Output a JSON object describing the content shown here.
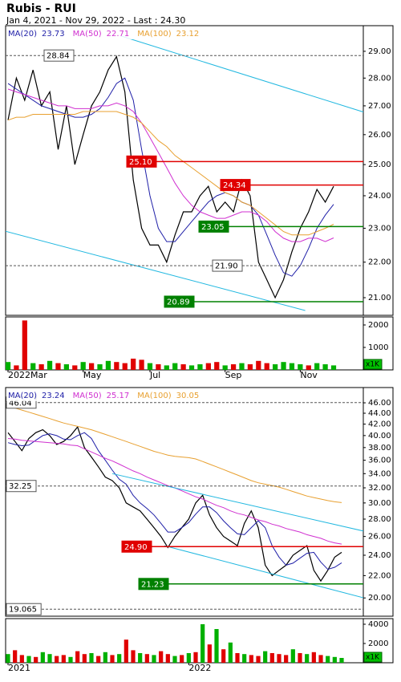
{
  "chart_data": [
    {
      "type": "line",
      "title": "Rubis - RUI",
      "subtitle": "Jan 4, 2021 - Nov 29, 2022 - Last : 24.30",
      "log": true,
      "ylim": [
        20.52,
        29.99
      ],
      "yticks": [
        {
          "value": 21,
          "label": "21.00"
        },
        {
          "value": 22,
          "label": "22.00"
        },
        {
          "value": 23,
          "label": "23.00"
        },
        {
          "value": 24,
          "label": "24.00"
        },
        {
          "value": 25,
          "label": "25.00"
        },
        {
          "value": 26,
          "label": "26.00"
        },
        {
          "value": 27,
          "label": "27.00"
        },
        {
          "value": 28,
          "label": "28.00"
        },
        {
          "value": 29,
          "label": "29.00"
        }
      ],
      "series": [
        {
          "color": "#000000",
          "values": [
            26.5,
            28.0,
            27.2,
            28.3,
            27.0,
            27.5,
            25.5,
            27.0,
            25.0,
            26.0,
            27.0,
            27.5,
            28.3,
            28.8,
            27.5,
            24.5,
            23.0,
            22.5,
            22.5,
            22.0,
            22.8,
            23.5,
            23.5,
            24.0,
            24.3,
            23.5,
            23.8,
            23.5,
            24.5,
            24.0,
            22.0,
            21.5,
            21.0,
            21.5,
            22.3,
            23.0,
            23.5,
            24.2,
            23.8,
            24.3
          ]
        },
        {
          "name": "MA(20)",
          "color": "#2020a8",
          "values": [
            27.8,
            27.6,
            27.4,
            27.2,
            27.0,
            26.9,
            26.8,
            26.7,
            26.6,
            26.6,
            26.7,
            26.9,
            27.3,
            27.8,
            28.0,
            27.2,
            25.5,
            24.0,
            23.0,
            22.6,
            22.6,
            22.9,
            23.2,
            23.5,
            23.8,
            24.0,
            24.1,
            24.0,
            23.8,
            23.7,
            23.4,
            22.8,
            22.2,
            21.7,
            21.6,
            21.9,
            22.4,
            23.0,
            23.4,
            23.73
          ]
        },
        {
          "name": "MA(50)",
          "color": "#d030d0",
          "values": [
            27.6,
            27.5,
            27.4,
            27.3,
            27.2,
            27.1,
            27.0,
            27.0,
            26.9,
            26.9,
            26.9,
            27.0,
            27.0,
            27.1,
            27.0,
            26.8,
            26.4,
            25.9,
            25.4,
            24.9,
            24.4,
            24.0,
            23.7,
            23.5,
            23.4,
            23.3,
            23.3,
            23.4,
            23.5,
            23.5,
            23.4,
            23.2,
            22.9,
            22.7,
            22.6,
            22.6,
            22.7,
            22.7,
            22.6,
            22.71
          ]
        },
        {
          "name": "MA(100)",
          "color": "#e8a030",
          "values": [
            26.5,
            26.6,
            26.6,
            26.7,
            26.7,
            26.7,
            26.7,
            26.7,
            26.7,
            26.8,
            26.8,
            26.8,
            26.8,
            26.8,
            26.7,
            26.6,
            26.4,
            26.1,
            25.8,
            25.6,
            25.3,
            25.1,
            24.9,
            24.7,
            24.5,
            24.3,
            24.1,
            24.0,
            23.8,
            23.7,
            23.5,
            23.3,
            23.1,
            22.9,
            22.8,
            22.8,
            22.8,
            22.9,
            23.0,
            23.12
          ]
        }
      ],
      "levels": [
        {
          "value": 28.84,
          "color": "#555555",
          "style": "dashed"
        },
        {
          "value": 25.1,
          "label": "25.10",
          "color": "#e00000",
          "style": "solid"
        },
        {
          "value": 24.34,
          "color": "#e00000",
          "style": "solid"
        },
        {
          "value": 23.05,
          "color": "#008000",
          "style": "solid"
        },
        {
          "value": 21.9,
          "label": "21.90",
          "color": "#555555",
          "style": "dashed"
        },
        {
          "value": 20.89,
          "color": "#008000",
          "style": "solid"
        }
      ],
      "trendlines": [
        {
          "color": "#22b8e0",
          "x": [
            13.5,
            42.6
          ],
          "values": [
            29.59,
            26.78
          ]
        },
        {
          "color": "#22b8e0",
          "x": [
            -0.3,
            35.6
          ],
          "values": [
            22.91,
            20.65
          ]
        }
      ]
    },
    {
      "type": "bar",
      "ylim": [
        0,
        2357
      ],
      "yticks": [
        1000,
        2000
      ],
      "unit_label": "x1K",
      "categories": [
        "2022Mar",
        null,
        null,
        null,
        null,
        null,
        null,
        null,
        null,
        "May",
        null,
        null,
        null,
        null,
        null,
        null,
        null,
        "Jul",
        null,
        null,
        null,
        null,
        null,
        null,
        null,
        null,
        "Sep",
        null,
        null,
        null,
        null,
        null,
        null,
        null,
        null,
        "Nov",
        null,
        null,
        null,
        null
      ],
      "values": [
        350,
        200,
        2200,
        300,
        250,
        400,
        300,
        250,
        200,
        350,
        300,
        250,
        400,
        350,
        300,
        500,
        450,
        300,
        250,
        200,
        300,
        250,
        200,
        250,
        300,
        350,
        200,
        250,
        300,
        250,
        400,
        300,
        250,
        350,
        300,
        250,
        200,
        300,
        250,
        200
      ],
      "colors": [
        "#00b000",
        "#e00000",
        "#e00000",
        "#00b000",
        "#e00000",
        "#00b000",
        "#e00000",
        "#00b000",
        "#e00000",
        "#00b000",
        "#e00000",
        "#00b000",
        "#00b000",
        "#e00000",
        "#e00000",
        "#e00000",
        "#e00000",
        "#00b000",
        "#e00000",
        "#00b000",
        "#00b000",
        "#e00000",
        "#00b000",
        "#00b000",
        "#e00000",
        "#e00000",
        "#00b000",
        "#e00000",
        "#00b000",
        "#e00000",
        "#e00000",
        "#e00000",
        "#00b000",
        "#00b000",
        "#00b000",
        "#00b000",
        "#e00000",
        "#00b000",
        "#00b000",
        "#00b000"
      ]
    },
    {
      "type": "line",
      "log": true,
      "ylim": [
        18.5,
        49.1
      ],
      "yticks": [
        {
          "value": 20,
          "label": "20.00"
        },
        {
          "value": 22,
          "label": "22.00"
        },
        {
          "value": 24,
          "label": "24.00"
        },
        {
          "value": 26,
          "label": "26.00"
        },
        {
          "value": 28,
          "label": "28.00"
        },
        {
          "value": 30,
          "label": "30.00"
        },
        {
          "value": 32,
          "label": "32.00"
        },
        {
          "value": 34,
          "label": "34.00"
        },
        {
          "value": 36,
          "label": "36.00"
        },
        {
          "value": 38,
          "label": "38.00"
        },
        {
          "value": 40,
          "label": "40.00"
        },
        {
          "value": 42,
          "label": "42.00"
        },
        {
          "value": 44,
          "label": "44.00"
        },
        {
          "value": 46,
          "label": "46.00"
        }
      ],
      "series": [
        {
          "color": "#000000",
          "values": [
            40.5,
            39,
            37.5,
            39.5,
            40.5,
            41,
            40,
            38.5,
            39,
            40,
            41.5,
            38,
            36.5,
            35,
            33.5,
            33,
            32,
            30,
            29.5,
            29,
            28,
            27,
            26,
            24.8,
            26,
            27,
            28,
            30,
            31,
            28.5,
            27,
            26,
            25.5,
            25,
            27.5,
            29,
            27,
            23,
            22,
            22.5,
            23,
            24,
            24.5,
            25,
            22.5,
            21.5,
            22.5,
            23.8,
            24.3
          ]
        },
        {
          "name": "MA(20)",
          "color": "#2020a8",
          "values": [
            38.8,
            38.5,
            38.3,
            38.4,
            39.2,
            40.0,
            40.3,
            40.0,
            39.4,
            39.3,
            40.0,
            40.5,
            39.5,
            37.5,
            36.0,
            34.5,
            33.2,
            32.5,
            31.0,
            30.0,
            29.3,
            28.5,
            27.5,
            26.5,
            26.5,
            27.0,
            27.6,
            28.6,
            29.5,
            29.5,
            28.8,
            27.8,
            27.0,
            26.3,
            26.2,
            27.0,
            27.8,
            27.0,
            25.0,
            23.8,
            23.0,
            23.2,
            23.7,
            24.2,
            24.3,
            23.3,
            22.6,
            22.8,
            23.24
          ]
        },
        {
          "name": "MA(50)",
          "color": "#d030d0",
          "values": [
            39.5,
            39.4,
            39.2,
            39.1,
            39.0,
            38.9,
            38.8,
            38.7,
            38.6,
            38.4,
            38.3,
            37.8,
            37.3,
            36.8,
            36.3,
            35.9,
            35.4,
            34.9,
            34.4,
            34.0,
            33.5,
            33.1,
            32.7,
            32.3,
            32.0,
            31.6,
            31.2,
            30.8,
            30.5,
            30.1,
            29.7,
            29.4,
            29.0,
            28.7,
            28.5,
            28.2,
            27.9,
            27.7,
            27.4,
            27.2,
            26.9,
            26.7,
            26.5,
            26.2,
            26.0,
            25.8,
            25.5,
            25.3,
            25.17
          ]
        },
        {
          "name": "MA(100)",
          "color": "#e8a030",
          "values": [
            45.5,
            45.0,
            44.6,
            44.2,
            43.8,
            43.4,
            43.0,
            42.6,
            42.2,
            41.9,
            41.6,
            41.3,
            41.0,
            40.6,
            40.2,
            39.8,
            39.4,
            39.0,
            38.6,
            38.2,
            37.8,
            37.4,
            37.1,
            36.8,
            36.6,
            36.5,
            36.4,
            36.2,
            35.8,
            35.4,
            35.0,
            34.6,
            34.2,
            33.8,
            33.4,
            33.0,
            32.7,
            32.5,
            32.3,
            32.1,
            31.8,
            31.5,
            31.2,
            30.9,
            30.7,
            30.5,
            30.3,
            30.15,
            30.05
          ]
        }
      ],
      "levels": [
        {
          "value": 46.04,
          "color": "#555555",
          "style": "dashed"
        },
        {
          "value": 32.25,
          "color": "#555555",
          "style": "dashed"
        },
        {
          "value": 24.9,
          "label": "24.90",
          "color": "#e00000",
          "style": "solid"
        },
        {
          "value": 21.23,
          "color": "#008000",
          "style": "solid"
        },
        {
          "value": 19.065,
          "color": "#555555",
          "style": "dashed"
        }
      ],
      "trendlines": [
        {
          "color": "#22b8e0",
          "x": [
            15.0,
            51.2
          ],
          "values": [
            34.0,
            26.6
          ]
        },
        {
          "color": "#22b8e0",
          "x": [
            22.5,
            51.2
          ],
          "values": [
            25.0,
            20.0
          ]
        }
      ]
    },
    {
      "type": "bar",
      "ylim": [
        0,
        4583
      ],
      "yticks": [
        2000,
        4000
      ],
      "unit_label": "x1K",
      "categories": [
        "2021",
        null,
        null,
        null,
        null,
        null,
        null,
        null,
        null,
        null,
        null,
        null,
        null,
        null,
        null,
        null,
        null,
        null,
        null,
        null,
        null,
        null,
        null,
        null,
        null,
        null,
        "2022",
        null,
        null,
        null,
        null,
        null,
        null,
        null,
        null,
        null,
        null,
        null,
        null,
        null,
        null,
        null,
        null,
        null,
        null,
        null,
        null,
        null,
        null
      ],
      "values": [
        900,
        1300,
        800,
        700,
        600,
        1100,
        900,
        700,
        800,
        600,
        1200,
        900,
        1000,
        700,
        1100,
        800,
        900,
        2400,
        1300,
        1000,
        900,
        800,
        1200,
        900,
        700,
        800,
        1000,
        1100,
        4000,
        1900,
        3500,
        1400,
        2100,
        1000,
        900,
        800,
        700,
        1200,
        1000,
        900,
        800,
        1400,
        1000,
        900,
        1100,
        800,
        700,
        600,
        500
      ],
      "colors": [
        "#00b000",
        "#e00000",
        "#e00000",
        "#00b000",
        "#e00000",
        "#00b000",
        "#00b000",
        "#e00000",
        "#e00000",
        "#00b000",
        "#e00000",
        "#e00000",
        "#00b000",
        "#e00000",
        "#00b000",
        "#e00000",
        "#00b000",
        "#e00000",
        "#e00000",
        "#00b000",
        "#e00000",
        "#00b000",
        "#e00000",
        "#e00000",
        "#00b000",
        "#e00000",
        "#00b000",
        "#e00000",
        "#00b000",
        "#e00000",
        "#00b000",
        "#e00000",
        "#00b000",
        "#e00000",
        "#00b000",
        "#e00000",
        "#e00000",
        "#00b000",
        "#e00000",
        "#e00000",
        "#e00000",
        "#00b000",
        "#e00000",
        "#00b000",
        "#e00000",
        "#e00000",
        "#00b000",
        "#00b000",
        "#00b000"
      ]
    }
  ]
}
